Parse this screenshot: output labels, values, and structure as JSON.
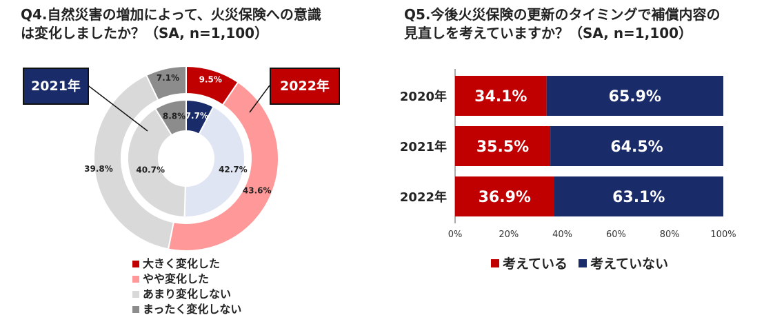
{
  "q4": {
    "title_line1": "Q4.自然災害の増加によって、火災保険への意識",
    "title_line2": "は変化しましたか？（SA, n=1,100）",
    "tag_2021": "2021年",
    "tag_2022": "2022年",
    "legend": [
      {
        "label": "大きく変化した",
        "color": "#c00000"
      },
      {
        "label": "やや変化した",
        "color": "#ff9999"
      },
      {
        "label": "あまり変化しない",
        "color": "#d9d9d9"
      },
      {
        "label": "まったく変化しない",
        "color": "#8c8c8c"
      }
    ]
  },
  "q5": {
    "title_line1": "Q5.今後火災保険の更新のタイミングで補償内容の",
    "title_line2": "見直しを考えていますか？（SA, n=1,100）",
    "legend": [
      {
        "label": "考えている",
        "color": "#c00000"
      },
      {
        "label": "考えていない",
        "color": "#1a2b69"
      }
    ]
  },
  "chart_data": [
    {
      "type": "pie",
      "title": "Q4.自然災害の増加によって、火災保険への意識は変化しましたか？（SA, n=1,100）",
      "categories": [
        "大きく変化した",
        "やや変化した",
        "あまり変化しない",
        "まったく変化しない"
      ],
      "series": [
        {
          "name": "2021年",
          "ring": "inner",
          "values": [
            7.7,
            42.7,
            40.7,
            8.8
          ],
          "labels": [
            "7.7%",
            "42.7%",
            "40.7%",
            "8.8%"
          ],
          "colors": [
            "#1a2b69",
            "#dfe5f3",
            "#d9d9d9",
            "#8c8c8c"
          ]
        },
        {
          "name": "2022年",
          "ring": "outer",
          "values": [
            9.5,
            43.6,
            39.8,
            7.1
          ],
          "labels": [
            "9.5%",
            "43.6%",
            "39.8%",
            "7.1%"
          ],
          "colors": [
            "#c00000",
            "#ff9999",
            "#d9d9d9",
            "#8c8c8c"
          ]
        }
      ]
    },
    {
      "type": "bar",
      "orientation": "horizontal",
      "stacked": true,
      "title": "Q5.今後火災保険の更新のタイミングで補償内容の見直しを考えていますか？（SA, n=1,100）",
      "categories": [
        "2020年",
        "2021年",
        "2022年"
      ],
      "series": [
        {
          "name": "考えている",
          "values": [
            34.1,
            35.5,
            36.9
          ],
          "labels": [
            "34.1%",
            "35.5%",
            "36.9%"
          ],
          "color": "#c00000"
        },
        {
          "name": "考えていない",
          "values": [
            65.9,
            64.5,
            63.1
          ],
          "labels": [
            "65.9%",
            "64.5%",
            "63.1%"
          ],
          "color": "#1a2b69"
        }
      ],
      "xlim": [
        0,
        100
      ],
      "xticks": [
        "0%",
        "20%",
        "40%",
        "60%",
        "80%",
        "100%"
      ]
    }
  ]
}
